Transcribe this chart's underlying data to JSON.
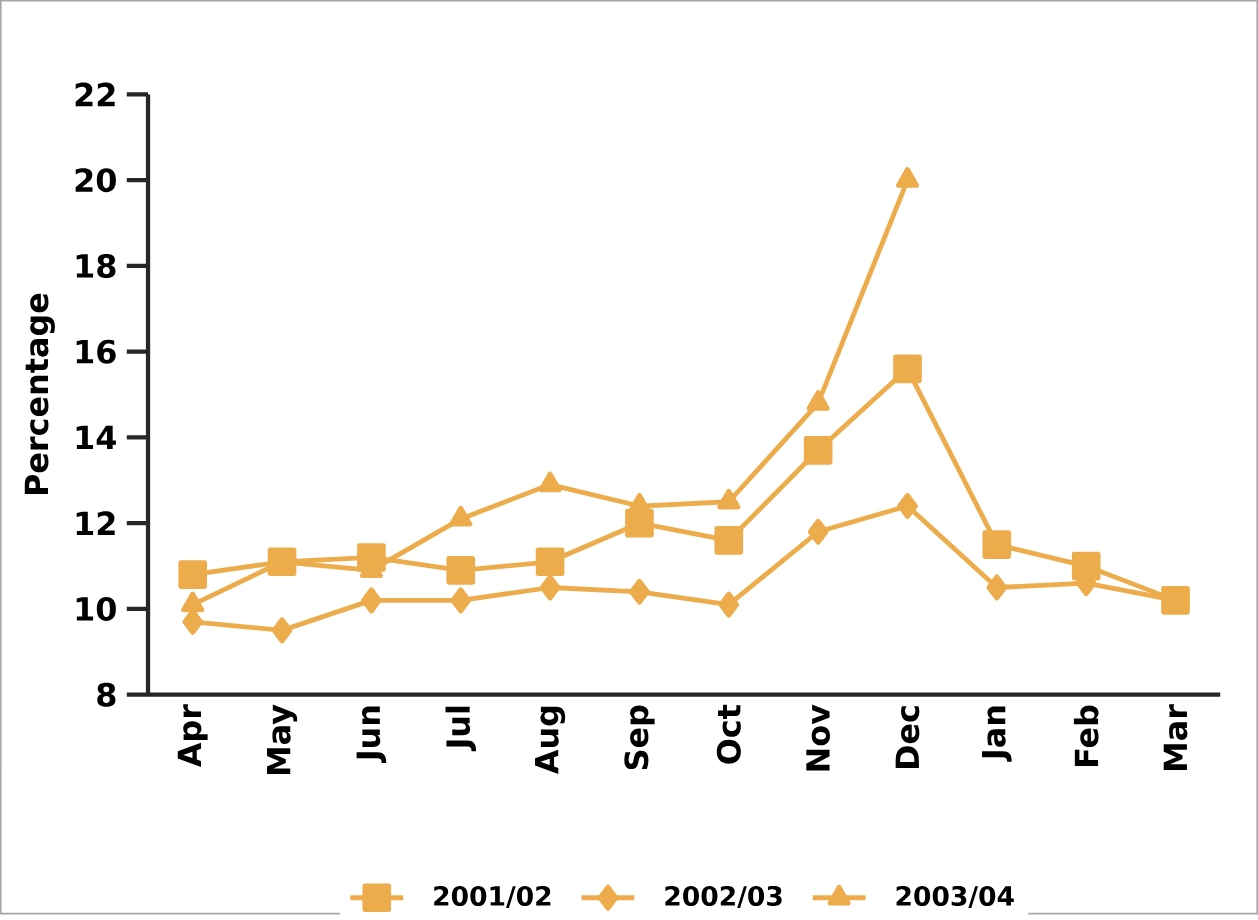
{
  "chart_data": {
    "type": "line",
    "ylabel": "Percentage",
    "categories": [
      "Apr",
      "May",
      "Jun",
      "Jul",
      "Aug",
      "Sep",
      "Oct",
      "Nov",
      "Dec",
      "Jan",
      "Feb",
      "Mar"
    ],
    "ylim": [
      8,
      22
    ],
    "yticks": [
      8,
      10,
      12,
      14,
      16,
      18,
      20,
      22
    ],
    "legend": "bottom",
    "grid": false,
    "series": [
      {
        "name": "2001/02",
        "color": "#edac4b",
        "marker": "square",
        "values": [
          10.8,
          11.1,
          11.2,
          10.9,
          11.1,
          12.0,
          11.6,
          13.7,
          15.6,
          11.5,
          11.0,
          10.2
        ]
      },
      {
        "name": "2002/03",
        "color": "#edac4b",
        "marker": "diamond",
        "values": [
          9.7,
          9.5,
          10.2,
          10.2,
          10.5,
          10.4,
          10.1,
          11.8,
          12.4,
          10.5,
          10.6,
          10.2
        ]
      },
      {
        "name": "2003/04",
        "color": "#edac4b",
        "marker": "triangle",
        "values": [
          10.1,
          11.1,
          10.9,
          12.1,
          12.9,
          12.4,
          12.5,
          14.8,
          20.0,
          null,
          null,
          null
        ]
      }
    ]
  }
}
